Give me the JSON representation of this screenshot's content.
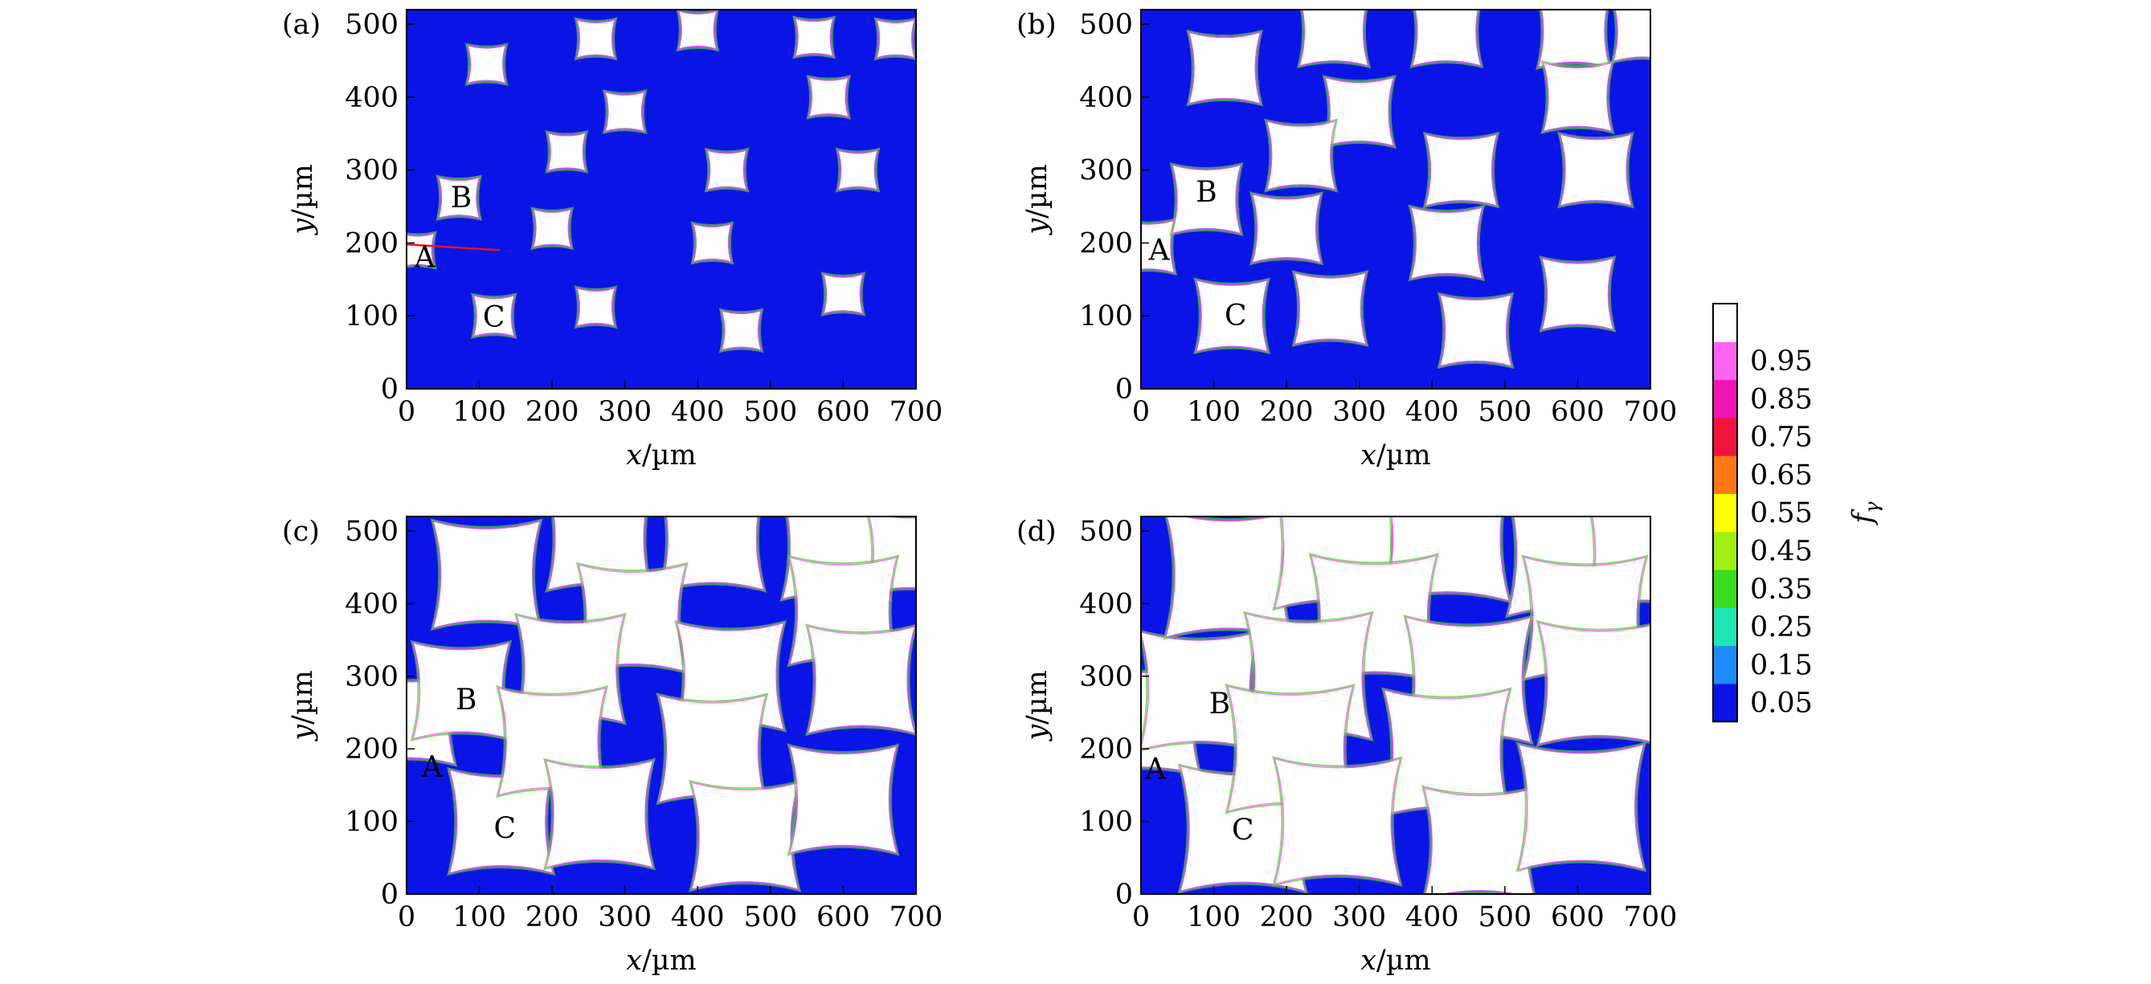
{
  "chart_data": {
    "type": "heatmap",
    "xlabel_var": "x",
    "xlabel_unit": "/µm",
    "ylabel_var": "y",
    "ylabel_unit": "/µm",
    "xlim": [
      0,
      700
    ],
    "ylim": [
      0,
      520
    ],
    "xticks": [
      0,
      100,
      200,
      300,
      400,
      500,
      600,
      700
    ],
    "yticks": [
      0,
      100,
      200,
      300,
      400,
      500
    ],
    "colorbar": {
      "var": "f",
      "sub": "γ",
      "levels": [
        {
          "value": "0.05",
          "color": "#0a14e6"
        },
        {
          "value": "0.15",
          "color": "#1e8cff"
        },
        {
          "value": "0.25",
          "color": "#1ee6b4"
        },
        {
          "value": "0.35",
          "color": "#3cdc1e"
        },
        {
          "value": "0.45",
          "color": "#a0f014"
        },
        {
          "value": "0.55",
          "color": "#ffff00"
        },
        {
          "value": "0.65",
          "color": "#ff7814"
        },
        {
          "value": "0.75",
          "color": "#f0143c"
        },
        {
          "value": "0.85",
          "color": "#f014b4"
        },
        {
          "value": "0.95",
          "color": "#ff64f0"
        },
        {
          "value": "",
          "color": "#ffffff"
        }
      ]
    },
    "panels": [
      {
        "tag": "(a)",
        "background": "#0a14e6",
        "grains": [
          {
            "cx": 15,
            "cy": 190,
            "s": 44
          },
          {
            "cx": 72,
            "cy": 262,
            "s": 54
          },
          {
            "cx": 120,
            "cy": 100,
            "s": 54
          },
          {
            "cx": 110,
            "cy": 445,
            "s": 50
          },
          {
            "cx": 260,
            "cy": 480,
            "s": 50
          },
          {
            "cx": 400,
            "cy": 492,
            "s": 50
          },
          {
            "cx": 560,
            "cy": 482,
            "s": 50
          },
          {
            "cx": 672,
            "cy": 480,
            "s": 50
          },
          {
            "cx": 580,
            "cy": 400,
            "s": 52
          },
          {
            "cx": 300,
            "cy": 380,
            "s": 52
          },
          {
            "cx": 220,
            "cy": 325,
            "s": 50
          },
          {
            "cx": 440,
            "cy": 300,
            "s": 52
          },
          {
            "cx": 620,
            "cy": 300,
            "s": 52
          },
          {
            "cx": 200,
            "cy": 220,
            "s": 50
          },
          {
            "cx": 420,
            "cy": 200,
            "s": 50
          },
          {
            "cx": 260,
            "cy": 112,
            "s": 50
          },
          {
            "cx": 460,
            "cy": 80,
            "s": 52
          },
          {
            "cx": 600,
            "cy": 130,
            "s": 52
          }
        ],
        "labels": [
          {
            "text": "A",
            "x": 25,
            "y": 180
          },
          {
            "text": "B",
            "x": 75,
            "y": 262
          },
          {
            "text": "C",
            "x": 120,
            "y": 98
          }
        ]
      },
      {
        "tag": "(b)",
        "background": "#0a14e6",
        "grains": [
          {
            "cx": 10,
            "cy": 195,
            "s": 70
          },
          {
            "cx": 90,
            "cy": 260,
            "s": 92
          },
          {
            "cx": 125,
            "cy": 100,
            "s": 96
          },
          {
            "cx": 115,
            "cy": 440,
            "s": 96
          },
          {
            "cx": 265,
            "cy": 490,
            "s": 92
          },
          {
            "cx": 420,
            "cy": 490,
            "s": 92
          },
          {
            "cx": 595,
            "cy": 490,
            "s": 96
          },
          {
            "cx": 690,
            "cy": 490,
            "s": 80
          },
          {
            "cx": 600,
            "cy": 400,
            "s": 92
          },
          {
            "cx": 300,
            "cy": 380,
            "s": 92
          },
          {
            "cx": 220,
            "cy": 320,
            "s": 92
          },
          {
            "cx": 440,
            "cy": 300,
            "s": 96
          },
          {
            "cx": 625,
            "cy": 300,
            "s": 96
          },
          {
            "cx": 200,
            "cy": 220,
            "s": 92
          },
          {
            "cx": 420,
            "cy": 200,
            "s": 96
          },
          {
            "cx": 260,
            "cy": 110,
            "s": 96
          },
          {
            "cx": 460,
            "cy": 80,
            "s": 96
          },
          {
            "cx": 600,
            "cy": 130,
            "s": 96
          }
        ],
        "labels": [
          {
            "text": "A",
            "x": 25,
            "y": 190
          },
          {
            "text": "B",
            "x": 90,
            "y": 270
          },
          {
            "text": "C",
            "x": 130,
            "y": 100
          }
        ]
      },
      {
        "tag": "(c)",
        "background": "#0a14e6",
        "grains": [
          {
            "cx": 5,
            "cy": 240,
            "s": 120
          },
          {
            "cx": 75,
            "cy": 280,
            "s": 130
          },
          {
            "cx": 130,
            "cy": 100,
            "s": 140
          },
          {
            "cx": 110,
            "cy": 440,
            "s": 145
          },
          {
            "cx": 265,
            "cy": 490,
            "s": 140
          },
          {
            "cx": 420,
            "cy": 490,
            "s": 140
          },
          {
            "cx": 590,
            "cy": 480,
            "s": 145
          },
          {
            "cx": 690,
            "cy": 470,
            "s": 110
          },
          {
            "cx": 600,
            "cy": 390,
            "s": 145
          },
          {
            "cx": 310,
            "cy": 380,
            "s": 145
          },
          {
            "cx": 225,
            "cy": 310,
            "s": 145
          },
          {
            "cx": 445,
            "cy": 300,
            "s": 145
          },
          {
            "cx": 625,
            "cy": 295,
            "s": 145
          },
          {
            "cx": 200,
            "cy": 210,
            "s": 145
          },
          {
            "cx": 420,
            "cy": 200,
            "s": 145
          },
          {
            "cx": 265,
            "cy": 110,
            "s": 145
          },
          {
            "cx": 465,
            "cy": 80,
            "s": 145
          },
          {
            "cx": 600,
            "cy": 130,
            "s": 145
          }
        ],
        "labels": [
          {
            "text": "A",
            "x": 35,
            "y": 175
          },
          {
            "text": "B",
            "x": 82,
            "y": 268
          },
          {
            "text": "C",
            "x": 135,
            "y": 90
          }
        ]
      },
      {
        "tag": "(d)",
        "background": "#0a14e6",
        "grains": [
          {
            "cx": 5,
            "cy": 240,
            "s": 150
          },
          {
            "cx": 80,
            "cy": 280,
            "s": 160
          },
          {
            "cx": 140,
            "cy": 90,
            "s": 170
          },
          {
            "cx": 120,
            "cy": 440,
            "s": 170
          },
          {
            "cx": 270,
            "cy": 480,
            "s": 170
          },
          {
            "cx": 420,
            "cy": 490,
            "s": 170
          },
          {
            "cx": 590,
            "cy": 470,
            "s": 170
          },
          {
            "cx": 690,
            "cy": 470,
            "s": 150
          },
          {
            "cx": 610,
            "cy": 380,
            "s": 165
          },
          {
            "cx": 320,
            "cy": 380,
            "s": 170
          },
          {
            "cx": 230,
            "cy": 300,
            "s": 170
          },
          {
            "cx": 450,
            "cy": 295,
            "s": 170
          },
          {
            "cx": 630,
            "cy": 290,
            "s": 165
          },
          {
            "cx": 205,
            "cy": 200,
            "s": 170
          },
          {
            "cx": 420,
            "cy": 195,
            "s": 170
          },
          {
            "cx": 270,
            "cy": 100,
            "s": 170
          },
          {
            "cx": 465,
            "cy": 70,
            "s": 150
          },
          {
            "cx": 605,
            "cy": 120,
            "s": 170
          }
        ],
        "labels": [
          {
            "text": "A",
            "x": 20,
            "y": 172
          },
          {
            "text": "B",
            "x": 108,
            "y": 262
          },
          {
            "text": "C",
            "x": 140,
            "y": 88
          }
        ]
      }
    ]
  }
}
